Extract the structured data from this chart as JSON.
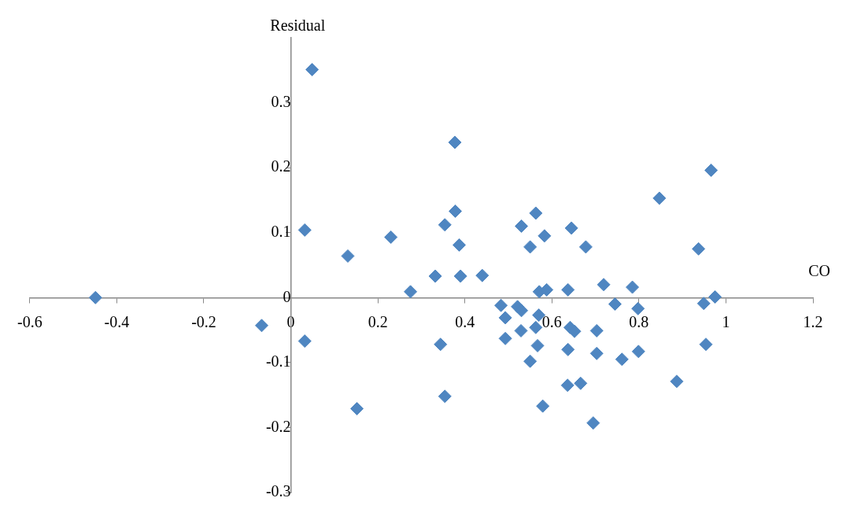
{
  "chart_data": {
    "type": "scatter",
    "xlabel": "CO",
    "ylabel": "Residual",
    "marker": "diamond",
    "grid": false,
    "xlim": [
      -0.6,
      1.2
    ],
    "xticks": [
      -0.6,
      -0.4,
      -0.2,
      0,
      0.2,
      0.4,
      0.6,
      0.8,
      1,
      1.2
    ],
    "ylim": [
      -0.3,
      0.4
    ],
    "yticks": [
      -0.3,
      -0.2,
      -0.1,
      0,
      0.1,
      0.2,
      0.3
    ],
    "series": [
      {
        "color": "#4f86c1",
        "x": [
          0.377,
          0.966,
          0.847,
          0.378,
          0.354,
          0.387,
          0.563,
          0.53,
          0.583,
          0.55,
          0.645,
          0.678,
          0.937,
          0.332,
          0.39,
          0.44,
          0.049,
          0.032,
          0.131,
          0.23,
          -0.449,
          -0.067,
          0.032,
          0.152,
          0.275,
          0.571,
          0.588,
          0.637,
          0.719,
          0.785,
          0.975,
          0.949,
          0.745,
          0.798,
          0.483,
          0.521,
          0.53,
          0.493,
          0.57,
          0.563,
          0.642,
          0.652,
          0.703,
          0.529,
          0.493,
          0.344,
          0.954,
          0.567,
          0.637,
          0.703,
          0.799,
          0.761,
          0.55,
          0.887,
          0.666,
          0.636,
          0.354,
          0.579,
          0.695
        ],
        "values": [
          0.239,
          0.196,
          0.153,
          0.133,
          0.112,
          0.081,
          0.13,
          0.11,
          0.095,
          0.078,
          0.107,
          0.078,
          0.075,
          0.033,
          0.033,
          0.034,
          0.351,
          0.104,
          0.064,
          0.093,
          0.0,
          -0.043,
          -0.067,
          -0.171,
          0.009,
          0.009,
          0.012,
          0.012,
          0.02,
          0.016,
          0.001,
          -0.009,
          -0.01,
          -0.017,
          -0.012,
          -0.014,
          -0.02,
          -0.031,
          -0.027,
          -0.046,
          -0.046,
          -0.052,
          -0.051,
          -0.051,
          -0.063,
          -0.072,
          -0.072,
          -0.074,
          -0.08,
          -0.086,
          -0.083,
          -0.095,
          -0.098,
          -0.129,
          -0.132,
          -0.135,
          -0.152,
          -0.167,
          -0.193
        ]
      }
    ]
  }
}
